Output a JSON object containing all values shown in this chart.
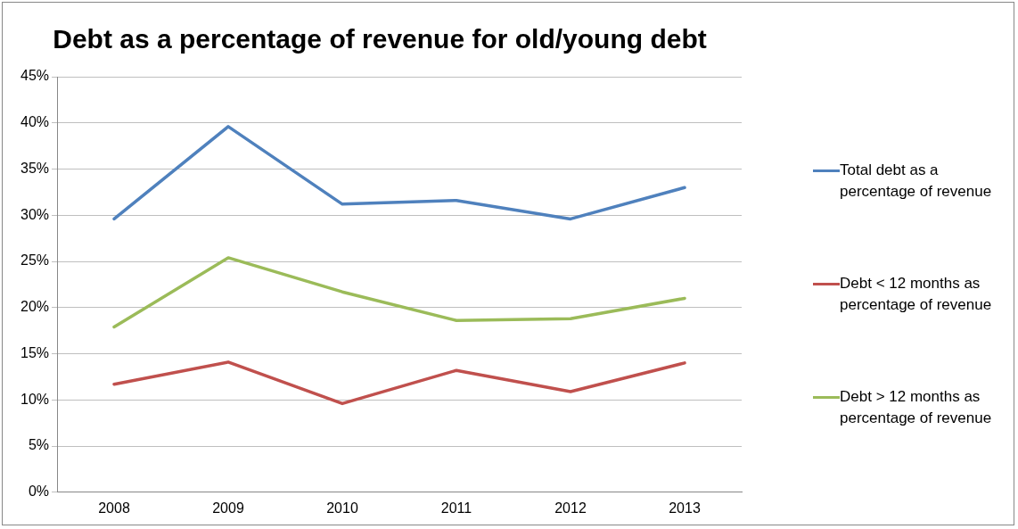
{
  "chart_data": {
    "type": "line",
    "title": "Debt as a percentage of revenue for old/young debt",
    "categories": [
      "2008",
      "2009",
      "2010",
      "2011",
      "2012",
      "2013"
    ],
    "series": [
      {
        "name": "Total debt as a percentage of revenue",
        "color": "#4f81bd",
        "values": [
          29.6,
          39.6,
          31.2,
          31.6,
          29.6,
          33.0
        ]
      },
      {
        "name": "Debt < 12 months as percentage of revenue",
        "color": "#c0504d",
        "values": [
          11.7,
          14.1,
          9.6,
          13.2,
          10.9,
          14.0
        ]
      },
      {
        "name": "Debt > 12 months as percentage of revenue",
        "color": "#9bbb59",
        "values": [
          17.9,
          25.4,
          21.7,
          18.6,
          18.8,
          21.0
        ]
      }
    ],
    "ylim": [
      0,
      45
    ],
    "yticks": [
      {
        "value": 0,
        "label": "0%"
      },
      {
        "value": 5,
        "label": "5%"
      },
      {
        "value": 10,
        "label": "10%"
      },
      {
        "value": 15,
        "label": "15%"
      },
      {
        "value": 20,
        "label": "20%"
      },
      {
        "value": 25,
        "label": "25%"
      },
      {
        "value": 30,
        "label": "30%"
      },
      {
        "value": 35,
        "label": "35%"
      },
      {
        "value": 40,
        "label": "40%"
      },
      {
        "value": 45,
        "label": "45%"
      }
    ],
    "grid": "y",
    "legend": "right",
    "marker": "none",
    "line_style": "solid"
  }
}
